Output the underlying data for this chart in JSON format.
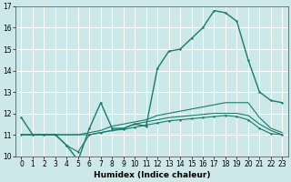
{
  "xlabel": "Humidex (Indice chaleur)",
  "ylabel": "",
  "bg_color": "#cce8e8",
  "grid_color": "#ffffff",
  "line_color": "#1a7a6e",
  "xlim": [
    -0.5,
    23.5
  ],
  "ylim": [
    10,
    17
  ],
  "xticks": [
    0,
    1,
    2,
    3,
    4,
    5,
    6,
    7,
    8,
    9,
    10,
    11,
    12,
    13,
    14,
    15,
    16,
    17,
    18,
    19,
    20,
    21,
    22,
    23
  ],
  "yticks": [
    10,
    11,
    12,
    13,
    14,
    15,
    16,
    17
  ],
  "lines": [
    {
      "x": [
        0,
        1,
        2,
        3,
        4,
        5,
        6,
        7,
        8,
        9,
        10,
        11,
        12,
        13,
        14,
        15,
        16,
        17,
        18,
        19,
        20,
        21,
        22,
        23
      ],
      "y": [
        11.8,
        11.0,
        11.0,
        11.0,
        10.5,
        9.8,
        11.3,
        12.5,
        11.3,
        11.3,
        11.5,
        11.4,
        14.1,
        14.9,
        15.0,
        15.5,
        16.0,
        16.8,
        16.7,
        16.3,
        14.5,
        13.0,
        12.6,
        12.5
      ],
      "with_markers": true,
      "linewidth": 1.0,
      "markersize": 2.0
    },
    {
      "x": [
        0,
        1,
        2,
        3,
        4,
        5,
        6,
        7,
        8,
        9,
        10,
        11,
        12,
        13,
        14,
        15,
        16,
        17,
        18,
        19,
        20,
        21,
        22,
        23
      ],
      "y": [
        11.0,
        11.0,
        11.0,
        11.0,
        11.0,
        11.0,
        11.1,
        11.2,
        11.4,
        11.5,
        11.6,
        11.7,
        11.9,
        12.0,
        12.1,
        12.2,
        12.3,
        12.4,
        12.5,
        12.5,
        12.5,
        11.8,
        11.3,
        11.1
      ],
      "with_markers": false,
      "linewidth": 0.8,
      "markersize": 0
    },
    {
      "x": [
        0,
        1,
        2,
        3,
        4,
        5,
        6,
        7,
        8,
        9,
        10,
        11,
        12,
        13,
        14,
        15,
        16,
        17,
        18,
        19,
        20,
        21,
        22,
        23
      ],
      "y": [
        11.0,
        11.0,
        11.0,
        11.0,
        11.0,
        11.0,
        11.0,
        11.1,
        11.2,
        11.3,
        11.5,
        11.6,
        11.7,
        11.8,
        11.85,
        11.9,
        11.95,
        12.0,
        12.0,
        12.0,
        11.9,
        11.5,
        11.2,
        11.0
      ],
      "with_markers": false,
      "linewidth": 0.8,
      "markersize": 0
    },
    {
      "x": [
        0,
        1,
        2,
        3,
        4,
        5,
        6,
        7,
        8,
        9,
        10,
        11,
        12,
        13,
        14,
        15,
        16,
        17,
        18,
        19,
        20,
        21,
        22,
        23
      ],
      "y": [
        11.0,
        11.0,
        11.0,
        11.0,
        10.5,
        10.2,
        11.0,
        11.1,
        11.2,
        11.25,
        11.35,
        11.45,
        11.55,
        11.65,
        11.7,
        11.75,
        11.8,
        11.85,
        11.9,
        11.85,
        11.7,
        11.3,
        11.05,
        11.0
      ],
      "with_markers": true,
      "linewidth": 0.8,
      "markersize": 2.0
    }
  ],
  "tick_fontsize": 5.5,
  "label_fontsize": 6.5
}
